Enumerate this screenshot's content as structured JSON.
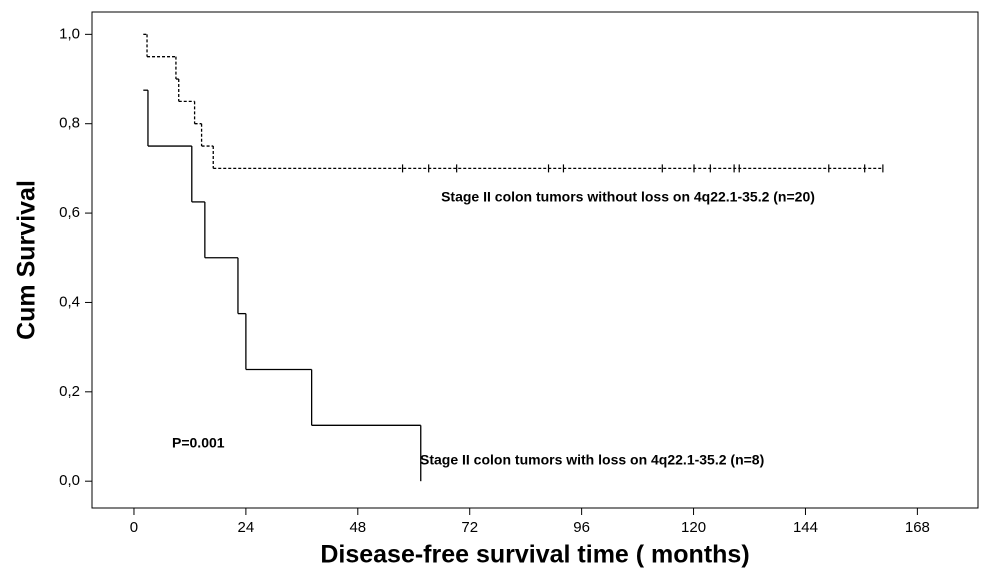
{
  "chart_data": {
    "type": "step",
    "xlabel": "Disease-free survival time ( months)",
    "ylabel": "Cum Survival",
    "annotations": [
      "P=0.001"
    ],
    "xlim": [
      -9,
      181
    ],
    "ylim": [
      -0.06,
      1.05
    ],
    "xticks": [
      0,
      24,
      48,
      72,
      96,
      120,
      144,
      168
    ],
    "yticks": [
      {
        "value": 0,
        "label": "0,0"
      },
      {
        "value": 0.2,
        "label": "0,2"
      },
      {
        "value": 0.4,
        "label": "0,4"
      },
      {
        "value": 0.6,
        "label": "0,6"
      },
      {
        "value": 0.8,
        "label": "0,8"
      },
      {
        "value": 1,
        "label": "1,0"
      }
    ],
    "series": [
      {
        "name": "Stage II colon tumors without loss on 4q22.1-35.2 (n=20)",
        "color": "#000000",
        "dash": true,
        "x": [
          2,
          2.8,
          9,
          9.6,
          13,
          14.5,
          17
        ],
        "values": [
          1,
          0.95,
          0.9,
          0.85,
          0.8,
          0.75,
          0.7
        ],
        "censored": {
          "x": [
            57.6,
            63.2,
            69.2,
            88.9,
            92.1,
            113.3,
            120.1,
            123.6,
            128.7,
            129.8,
            149,
            156.7,
            160.6
          ],
          "values": [
            0.7,
            0.7,
            0.7,
            0.7,
            0.7,
            0.7,
            0.7,
            0.7,
            0.7,
            0.7,
            0.7,
            0.7,
            0.7
          ]
        }
      },
      {
        "name": "Stage II colon tumors with loss on  4q22.1-35.2 (n=8)",
        "color": "#000000",
        "dash": false,
        "x": [
          2,
          3,
          12.4,
          15.2,
          22.3,
          24,
          38.1,
          61.5
        ],
        "values": [
          0.875,
          0.75,
          0.625,
          0.5,
          0.375,
          0.25,
          0.125,
          0
        ]
      }
    ]
  }
}
